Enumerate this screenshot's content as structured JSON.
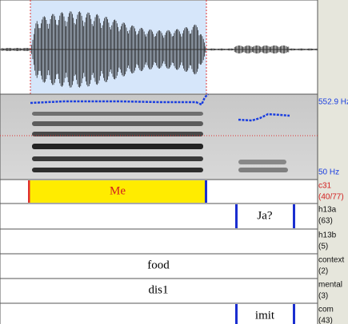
{
  "pitch_axis": {
    "max_label": "552.9 Hz",
    "min_label": "50 Hz"
  },
  "tiers": [
    {
      "name": "c31",
      "count": "(40/77)",
      "interval_label": "Me"
    },
    {
      "name": "h13a",
      "count": "(63)",
      "interval_label": "Ja?"
    },
    {
      "name": "h13b",
      "count": "(5)"
    },
    {
      "name": "context",
      "count": "(2)",
      "interval_label": "food"
    },
    {
      "name": "mental",
      "count": "(3)",
      "interval_label": "dis1"
    },
    {
      "name": "com",
      "count": "(43)",
      "interval_label": "imit"
    }
  ]
}
